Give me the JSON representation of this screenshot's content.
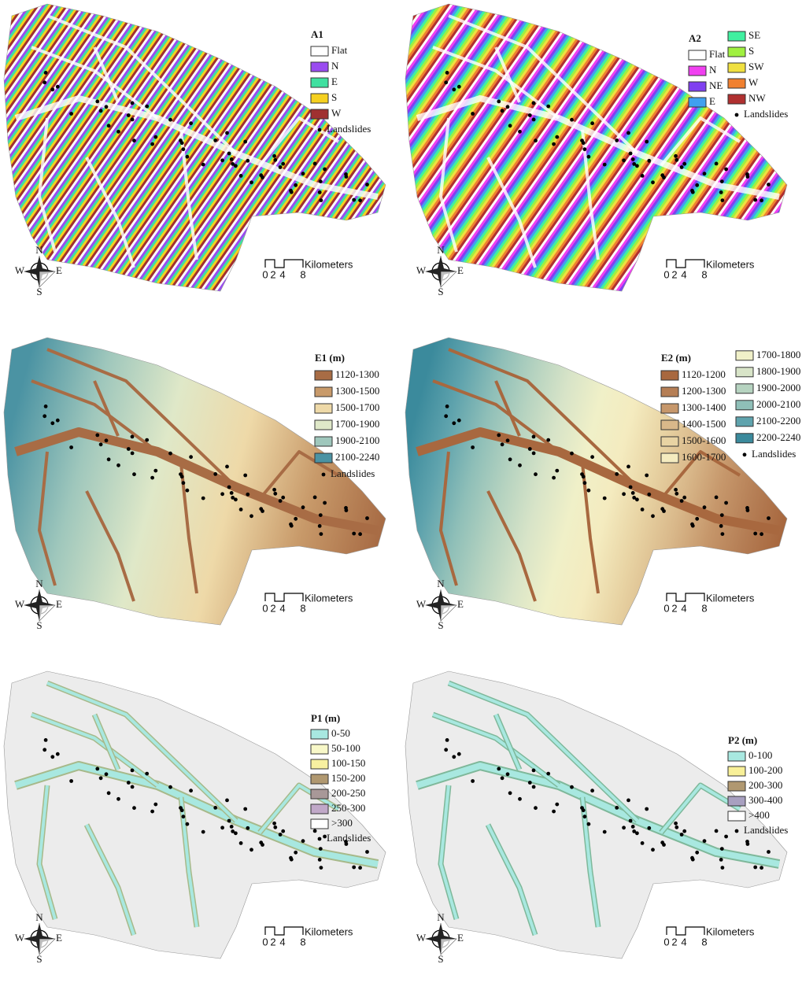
{
  "panels": [
    {
      "title": "A1",
      "legend_columns": [
        [
          {
            "label": "Flat",
            "color": "#ffffff"
          },
          {
            "label": "N",
            "color": "#9a4cf0"
          },
          {
            "label": "E",
            "color": "#40e0a0"
          },
          {
            "label": "S",
            "color": "#f5d020"
          },
          {
            "label": "W",
            "color": "#a03030"
          }
        ]
      ],
      "landslides_label": "Landslides",
      "compass": [
        "N",
        "E",
        "S",
        "W"
      ],
      "scale": {
        "ticks": [
          "0",
          "2",
          "4",
          "8"
        ],
        "unit": "Kilometers"
      }
    },
    {
      "title": "A2",
      "legend_columns": [
        [
          {
            "label": "Flat",
            "color": "#ffffff"
          },
          {
            "label": "N",
            "color": "#f040f0"
          },
          {
            "label": "NE",
            "color": "#8040f0"
          },
          {
            "label": "E",
            "color": "#40a0f0"
          }
        ],
        [
          {
            "label": "SE",
            "color": "#40f0a0"
          },
          {
            "label": "S",
            "color": "#a0f040"
          },
          {
            "label": "SW",
            "color": "#f0e040"
          },
          {
            "label": "W",
            "color": "#f08030"
          },
          {
            "label": "NW",
            "color": "#b03030"
          }
        ]
      ],
      "landslides_label": "Landslides",
      "compass": [
        "N",
        "E",
        "S",
        "W"
      ],
      "scale": {
        "ticks": [
          "0",
          "2",
          "4",
          "8"
        ],
        "unit": "Kilometers"
      }
    },
    {
      "title": "E1  (m)",
      "legend_columns": [
        [
          {
            "label": "1120-1300",
            "color": "#a86c45"
          },
          {
            "label": "1300-1500",
            "color": "#c89a6a"
          },
          {
            "label": "1500-1700",
            "color": "#eed9a8"
          },
          {
            "label": "1700-1900",
            "color": "#dfe8c8"
          },
          {
            "label": "1900-2100",
            "color": "#9fc7bc"
          },
          {
            "label": "2100-2240",
            "color": "#4b93a3"
          }
        ]
      ],
      "landslides_label": "Landslides",
      "compass": [
        "N",
        "E",
        "S",
        "W"
      ],
      "scale": {
        "ticks": [
          "0",
          "2",
          "4",
          "8"
        ],
        "unit": "Kilometers"
      }
    },
    {
      "title": "E2  (m)",
      "legend_columns": [
        [
          {
            "label": "1120-1200",
            "color": "#a8683f"
          },
          {
            "label": "1200-1300",
            "color": "#b57e55"
          },
          {
            "label": "1300-1400",
            "color": "#c6976b"
          },
          {
            "label": "1400-1500",
            "color": "#d9b88a"
          },
          {
            "label": "1500-1600",
            "color": "#e8d3a3"
          },
          {
            "label": "1600-1700",
            "color": "#f4ebbf"
          }
        ],
        [
          {
            "label": "1700-1800",
            "color": "#f0f0c8"
          },
          {
            "label": "1800-1900",
            "color": "#d8e4c8"
          },
          {
            "label": "1900-2000",
            "color": "#b6d3c0"
          },
          {
            "label": "2000-2100",
            "color": "#8fbfb8"
          },
          {
            "label": "2100-2200",
            "color": "#5fa3ad"
          },
          {
            "label": "2200-2240",
            "color": "#3b8a9c"
          }
        ]
      ],
      "landslides_label": "Landslides",
      "compass": [
        "N",
        "E",
        "S",
        "W"
      ],
      "scale": {
        "ticks": [
          "0",
          "2",
          "4",
          "8"
        ],
        "unit": "Kilometers"
      }
    },
    {
      "title": "P1  (m)",
      "legend_columns": [
        [
          {
            "label": "0-50",
            "color": "#a8e8e0"
          },
          {
            "label": "50-100",
            "color": "#f8f8c8"
          },
          {
            "label": "100-150",
            "color": "#f8f0a0"
          },
          {
            "label": "150-200",
            "color": "#b09870"
          },
          {
            "label": "200-250",
            "color": "#a89898"
          },
          {
            "label": "250-300",
            "color": "#c0a8c8"
          },
          {
            "label": ">300",
            "color": "#ffffff"
          }
        ]
      ],
      "landslides_label": "Landslides",
      "compass": [
        "N",
        "E",
        "S",
        "W"
      ],
      "scale": {
        "ticks": [
          "0",
          "2",
          "4",
          "8"
        ],
        "unit": "Kilometers"
      }
    },
    {
      "title": "P2  (m)",
      "legend_columns": [
        [
          {
            "label": "0-100",
            "color": "#a8e8e0"
          },
          {
            "label": "100-200",
            "color": "#f8f098"
          },
          {
            "label": "200-300",
            "color": "#b09870"
          },
          {
            "label": "300-400",
            "color": "#a8a0c0"
          },
          {
            "label": ">400",
            "color": "#ffffff"
          }
        ]
      ],
      "landslides_label": "Landslides",
      "compass": [
        "N",
        "E",
        "S",
        "W"
      ],
      "scale": {
        "ticks": [
          "0",
          "2",
          "4",
          "8"
        ],
        "unit": "Kilometers"
      }
    }
  ]
}
